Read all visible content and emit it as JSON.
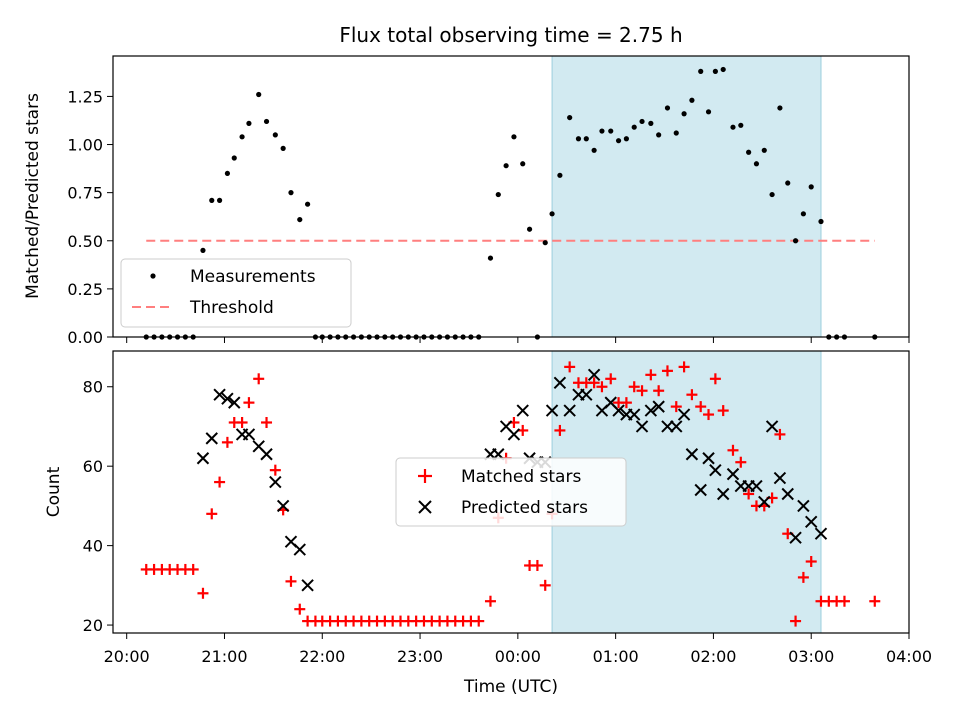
{
  "chart_data": [
    {
      "type": "scatter",
      "title": "Flux total observing time = 2.75 h",
      "xlabel": "",
      "ylabel": "Matched/Predicted stars",
      "ylim": [
        0,
        1.46
      ],
      "yticks": [
        "0.00",
        "0.25",
        "0.50",
        "0.75",
        "1.00",
        "1.25"
      ],
      "xlim_hours": [
        19.86,
        28.0
      ],
      "highlight_span_hours": [
        24.35,
        27.1
      ],
      "highlight_color": "#add8e6",
      "legend_position": "lower-left",
      "threshold": {
        "name": "Threshold",
        "value": 0.5,
        "x_start_hours": 20.2,
        "x_end_hours": 27.65,
        "color": "#ff7f7f"
      },
      "series": [
        {
          "name": "Measurements",
          "color": "#000000",
          "x_hours": [
            20.2,
            20.28,
            20.36,
            20.44,
            20.52,
            20.6,
            20.68,
            20.78,
            20.87,
            20.95,
            21.03,
            21.1,
            21.18,
            21.25,
            21.35,
            21.43,
            21.52,
            21.6,
            21.68,
            21.77,
            21.85,
            21.93,
            22.0,
            22.08,
            22.16,
            22.24,
            22.32,
            22.4,
            22.48,
            22.56,
            22.64,
            22.72,
            22.8,
            22.88,
            22.96,
            23.04,
            23.12,
            23.2,
            23.28,
            23.36,
            23.44,
            23.52,
            23.6,
            23.72,
            23.8,
            23.88,
            23.96,
            24.05,
            24.12,
            24.2,
            24.28,
            24.35,
            24.43,
            24.53,
            24.62,
            24.7,
            24.78,
            24.86,
            24.95,
            25.03,
            25.11,
            25.19,
            25.27,
            25.36,
            25.44,
            25.53,
            25.62,
            25.7,
            25.78,
            25.87,
            25.95,
            26.02,
            26.1,
            26.2,
            26.28,
            26.36,
            26.44,
            26.52,
            26.6,
            26.68,
            26.76,
            26.84,
            26.92,
            27.0,
            27.1,
            27.18,
            27.26,
            27.34,
            27.65
          ],
          "y": [
            0,
            0,
            0,
            0,
            0,
            0,
            0,
            0.45,
            0.71,
            0.71,
            0.85,
            0.93,
            1.04,
            1.11,
            1.26,
            1.12,
            1.05,
            0.98,
            0.75,
            0.61,
            0.69,
            0,
            0,
            0,
            0,
            0,
            0,
            0,
            0,
            0,
            0,
            0,
            0,
            0,
            0,
            0,
            0,
            0,
            0,
            0,
            0,
            0,
            0,
            0.41,
            0.74,
            0.89,
            1.04,
            0.9,
            0.56,
            0,
            0.49,
            0.64,
            0.84,
            1.14,
            1.03,
            1.03,
            0.97,
            1.07,
            1.07,
            1.02,
            1.03,
            1.09,
            1.12,
            1.11,
            1.05,
            1.19,
            1.06,
            1.16,
            1.23,
            1.38,
            1.17,
            1.38,
            1.39,
            1.09,
            1.1,
            0.96,
            0.9,
            0.97,
            0.74,
            1.19,
            0.8,
            0.5,
            0.64,
            0.78,
            0.6,
            0,
            0,
            0,
            0
          ]
        }
      ]
    },
    {
      "type": "scatter",
      "title": "",
      "xlabel": "Time (UTC)",
      "ylabel": "Count",
      "ylim": [
        18,
        89
      ],
      "yticks": [
        "20",
        "40",
        "60",
        "80"
      ],
      "xlim_hours": [
        19.86,
        28.0
      ],
      "xticks": [
        {
          "h": 20,
          "label": "20:00"
        },
        {
          "h": 21,
          "label": "21:00"
        },
        {
          "h": 22,
          "label": "22:00"
        },
        {
          "h": 23,
          "label": "23:00"
        },
        {
          "h": 24,
          "label": "00:00"
        },
        {
          "h": 25,
          "label": "01:00"
        },
        {
          "h": 26,
          "label": "02:00"
        },
        {
          "h": 27,
          "label": "03:00"
        },
        {
          "h": 28,
          "label": "04:00"
        }
      ],
      "highlight_span_hours": [
        24.35,
        27.1
      ],
      "highlight_color": "#add8e6",
      "legend_position": "center",
      "series": [
        {
          "name": "Matched stars",
          "color": "#ff0000",
          "marker": "plus",
          "x_hours": [
            20.2,
            20.28,
            20.36,
            20.44,
            20.52,
            20.6,
            20.68,
            20.78,
            20.87,
            20.95,
            21.03,
            21.1,
            21.18,
            21.25,
            21.35,
            21.43,
            21.52,
            21.6,
            21.68,
            21.77,
            21.85,
            21.93,
            22.0,
            22.08,
            22.16,
            22.24,
            22.32,
            22.4,
            22.48,
            22.56,
            22.64,
            22.72,
            22.8,
            22.88,
            22.96,
            23.04,
            23.12,
            23.2,
            23.28,
            23.36,
            23.44,
            23.52,
            23.6,
            23.72,
            23.8,
            23.88,
            23.96,
            24.05,
            24.12,
            24.2,
            24.28,
            24.35,
            24.43,
            24.53,
            24.62,
            24.7,
            24.78,
            24.86,
            24.95,
            25.03,
            25.11,
            25.19,
            25.27,
            25.36,
            25.44,
            25.53,
            25.62,
            25.7,
            25.78,
            25.87,
            25.95,
            26.02,
            26.1,
            26.2,
            26.28,
            26.36,
            26.44,
            26.52,
            26.6,
            26.68,
            26.76,
            26.84,
            26.92,
            27.0,
            27.1,
            27.18,
            27.26,
            27.34,
            27.65
          ],
          "y": [
            34,
            34,
            34,
            34,
            34,
            34,
            34,
            28,
            48,
            56,
            66,
            71,
            71,
            76,
            82,
            71,
            59,
            49,
            31,
            24,
            21,
            21,
            21,
            21,
            21,
            21,
            21,
            21,
            21,
            21,
            21,
            21,
            21,
            21,
            21,
            21,
            21,
            21,
            21,
            21,
            21,
            21,
            21,
            26,
            47,
            62,
            71,
            69,
            35,
            35,
            30,
            48,
            69,
            85,
            81,
            81,
            81,
            80,
            82,
            76,
            76,
            80,
            79,
            83,
            79,
            84,
            75,
            85,
            78,
            75,
            73,
            82,
            74,
            64,
            61,
            53,
            50,
            50,
            52,
            68,
            43,
            21,
            32,
            36,
            26,
            26,
            26,
            26,
            26
          ]
        },
        {
          "name": "Predicted stars",
          "color": "#000000",
          "marker": "x",
          "x_hours": [
            20.78,
            20.87,
            20.95,
            21.03,
            21.1,
            21.18,
            21.25,
            21.35,
            21.43,
            21.52,
            21.6,
            21.68,
            21.77,
            21.85,
            23.72,
            23.8,
            23.88,
            23.96,
            24.05,
            24.12,
            24.2,
            24.28,
            24.35,
            24.43,
            24.53,
            24.62,
            24.7,
            24.78,
            24.86,
            24.95,
            25.03,
            25.11,
            25.19,
            25.27,
            25.36,
            25.44,
            25.53,
            25.62,
            25.7,
            25.78,
            25.87,
            25.95,
            26.02,
            26.1,
            26.2,
            26.28,
            26.36,
            26.44,
            26.52,
            26.6,
            26.68,
            26.76,
            26.84,
            26.92,
            27.0,
            27.1
          ],
          "y": [
            62,
            67,
            78,
            77,
            76,
            68,
            68,
            65,
            63,
            56,
            50,
            41,
            39,
            30,
            63,
            63,
            70,
            68,
            74,
            62,
            61,
            61,
            74,
            81,
            74,
            78,
            78,
            83,
            74,
            76,
            74,
            73,
            73,
            70,
            74,
            75,
            70,
            70,
            73,
            63,
            54,
            62,
            59,
            53,
            58,
            55,
            55,
            55,
            51,
            70,
            57,
            53,
            42,
            50,
            46,
            43
          ]
        }
      ]
    }
  ]
}
